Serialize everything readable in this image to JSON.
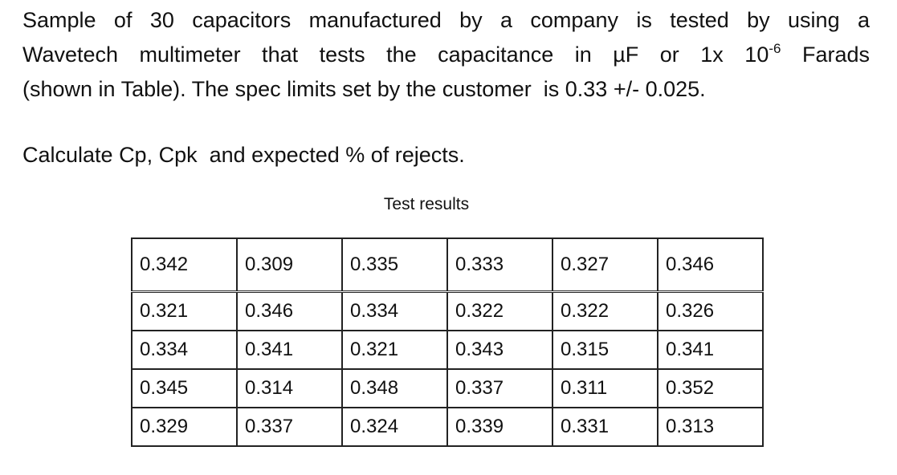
{
  "intro": {
    "line1": "Sample of 30 capacitors manufactured by a company is tested by using a",
    "line2_before": "Wavetech multimeter that tests the capacitance in µF or 1x 10",
    "line2_exponent": "-6",
    "line2_after": " Farads",
    "line3": "(shown in Table). The spec limits set by the customer  is 0.33 +/- 0.025."
  },
  "question": "Calculate Cp, Cpk  and expected % of rejects.",
  "table": {
    "caption": "Test results",
    "rows": [
      [
        "0.342",
        "0.309",
        "0.335",
        "0.333",
        "0.327",
        "0.346"
      ],
      [
        "0.321",
        "0.346",
        "0.334",
        "0.322",
        "0.322",
        "0.326"
      ],
      [
        "0.334",
        "0.341",
        "0.321",
        "0.343",
        "0.315",
        "0.341"
      ],
      [
        "0.345",
        "0.314",
        "0.348",
        "0.337",
        "0.311",
        "0.352"
      ],
      [
        "0.329",
        "0.337",
        "0.324",
        "0.339",
        "0.331",
        "0.313"
      ]
    ]
  }
}
